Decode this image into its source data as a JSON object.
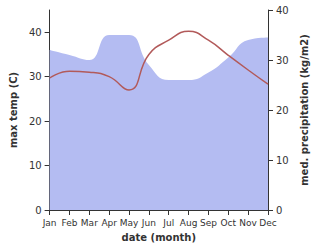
{
  "chart_data": {
    "type": "line",
    "xlabel": "date (month)",
    "ylabel": "max temp (C)",
    "y2label": "med. precipitation (kg/m2)",
    "categories": [
      "Jan",
      "Feb",
      "Mar",
      "Apr",
      "May",
      "Jun",
      "Jul",
      "Aug",
      "Sep",
      "Oct",
      "Nov",
      "Dec"
    ],
    "series": [
      {
        "name": "med. precipitation",
        "type": "area",
        "axis": "y2",
        "color": "#b4bcf2",
        "values": [
          32,
          31,
          30,
          35,
          35,
          29,
          26,
          26,
          27.5,
          30.5,
          34,
          34.5
        ]
      },
      {
        "name": "max temp",
        "type": "line",
        "color": "#b25a5a",
        "values": [
          29.7,
          31.2,
          31,
          30,
          27,
          35,
          38.2,
          40.2,
          38.2,
          34.8,
          31.5,
          28.3
        ]
      }
    ],
    "ylim": [
      0,
      45
    ],
    "yticks": [
      0,
      10,
      20,
      30,
      40
    ],
    "y2lim": [
      0,
      40
    ],
    "y2ticks": [
      0,
      10,
      20,
      30,
      40
    ],
    "grid": false
  }
}
